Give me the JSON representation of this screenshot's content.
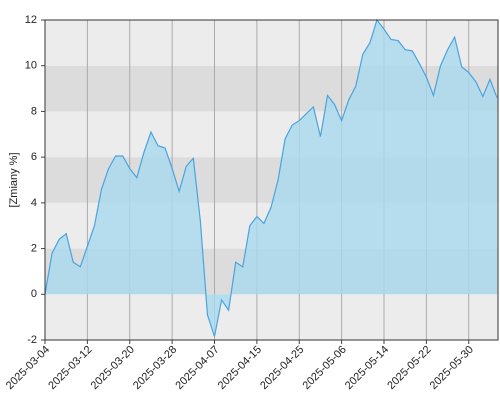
{
  "chart_data": {
    "type": "area",
    "y_label": "[Zmiany %]",
    "categories": [
      "2025-03-04",
      null,
      null,
      null,
      null,
      null,
      "2025-03-12",
      null,
      null,
      null,
      null,
      null,
      "2025-03-20",
      null,
      null,
      null,
      null,
      null,
      "2025-03-28",
      null,
      null,
      null,
      null,
      null,
      "2025-04-07",
      null,
      null,
      null,
      null,
      null,
      "2025-04-15",
      null,
      null,
      null,
      null,
      null,
      "2025-04-25",
      null,
      null,
      null,
      null,
      null,
      "2025-05-06",
      null,
      null,
      null,
      null,
      null,
      "2025-05-14",
      null,
      null,
      null,
      null,
      null,
      "2025-05-22",
      null,
      null,
      null,
      null,
      null,
      "2025-05-30",
      null,
      null,
      null,
      null
    ],
    "values": [
      0,
      1.8,
      2.4,
      2.65,
      1.4,
      1.2,
      2.1,
      3.0,
      4.6,
      5.5,
      6.05,
      6.05,
      5.5,
      5.1,
      6.2,
      7.1,
      6.5,
      6.4,
      5.5,
      4.5,
      5.6,
      5.95,
      3.2,
      -0.9,
      -1.85,
      -0.25,
      -0.7,
      1.4,
      1.2,
      3.0,
      3.4,
      3.1,
      3.8,
      5.0,
      6.8,
      7.4,
      7.6,
      7.9,
      8.2,
      6.9,
      8.7,
      8.3,
      7.6,
      8.5,
      9.1,
      10.5,
      11.0,
      12.0,
      11.6,
      11.15,
      11.1,
      10.7,
      10.65,
      10.1,
      9.5,
      8.7,
      10.0,
      10.7,
      11.25,
      9.95,
      9.7,
      9.3,
      8.65,
      9.4,
      8.6
    ],
    "color": "#4aa3df",
    "fill": "#a9d9ef",
    "ylim": [
      -2,
      12
    ],
    "yticks": [
      -2,
      0,
      2,
      4,
      6,
      8,
      10,
      12
    ],
    "grid": true
  }
}
